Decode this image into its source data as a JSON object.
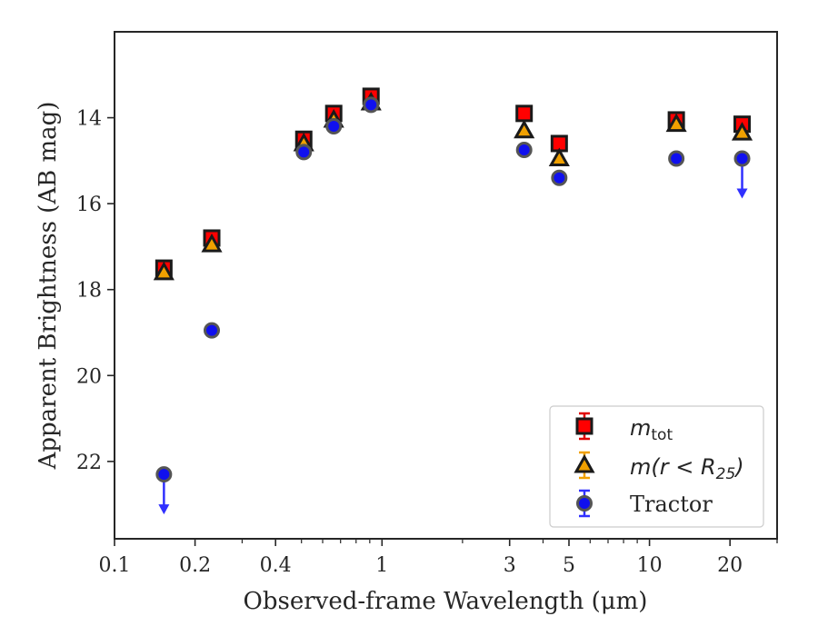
{
  "chart_data": {
    "type": "scatter",
    "title": "",
    "xlabel": "Observed-frame Wavelength (μm)",
    "ylabel": "Apparent Brightness (AB mag)",
    "xscale": "log",
    "xlim": [
      0.1,
      30
    ],
    "ylim": [
      23.8,
      12.0
    ],
    "y_inverted": true,
    "x_ticks": [
      0.1,
      0.2,
      0.4,
      1,
      3,
      5,
      10,
      20
    ],
    "x_tick_labels": [
      "0.1",
      "0.2",
      "0.4",
      "1",
      "3",
      "5",
      "10",
      "20"
    ],
    "y_ticks": [
      14,
      16,
      18,
      20,
      22
    ],
    "y_tick_labels": [
      "14",
      "16",
      "18",
      "20",
      "22"
    ],
    "grid": false,
    "legend_position": "lower-right",
    "series": [
      {
        "name": "m_tot",
        "legend_main": "m",
        "legend_sub": "tot",
        "marker": "square",
        "color": "#ff0000",
        "edge": "#1a1a1a",
        "errcolor": "#e00000",
        "points": [
          {
            "x": 0.153,
            "y": 17.5
          },
          {
            "x": 0.231,
            "y": 16.8
          },
          {
            "x": 0.51,
            "y": 14.5
          },
          {
            "x": 0.66,
            "y": 13.9
          },
          {
            "x": 0.91,
            "y": 13.5
          },
          {
            "x": 3.4,
            "y": 13.9
          },
          {
            "x": 4.6,
            "y": 14.6
          },
          {
            "x": 12.6,
            "y": 14.05
          },
          {
            "x": 22.2,
            "y": 14.15
          }
        ]
      },
      {
        "name": "m(r < R_25)",
        "legend_main": "m(r < R",
        "legend_sub": "25",
        "legend_tail": ")",
        "marker": "triangle",
        "color": "#f0a000",
        "edge": "#1a1a1a",
        "errcolor": "#f0a000",
        "points": [
          {
            "x": 0.153,
            "y": 17.6
          },
          {
            "x": 0.231,
            "y": 16.95
          },
          {
            "x": 0.51,
            "y": 14.6
          },
          {
            "x": 0.66,
            "y": 14.05
          },
          {
            "x": 0.91,
            "y": 13.65
          },
          {
            "x": 3.4,
            "y": 14.3
          },
          {
            "x": 4.6,
            "y": 14.95
          },
          {
            "x": 12.6,
            "y": 14.15
          },
          {
            "x": 22.2,
            "y": 14.35
          }
        ]
      },
      {
        "name": "Tractor",
        "marker": "circle",
        "color": "#1010ee",
        "edge": "#555555",
        "errcolor": "#3030ff",
        "points": [
          {
            "x": 0.153,
            "y": 22.3,
            "upper_limit": true
          },
          {
            "x": 0.231,
            "y": 18.95
          },
          {
            "x": 0.51,
            "y": 14.8
          },
          {
            "x": 0.66,
            "y": 14.2
          },
          {
            "x": 0.91,
            "y": 13.7
          },
          {
            "x": 3.4,
            "y": 14.75
          },
          {
            "x": 4.6,
            "y": 15.4
          },
          {
            "x": 12.6,
            "y": 14.95
          },
          {
            "x": 22.2,
            "y": 14.95,
            "upper_limit": true
          }
        ]
      }
    ]
  }
}
